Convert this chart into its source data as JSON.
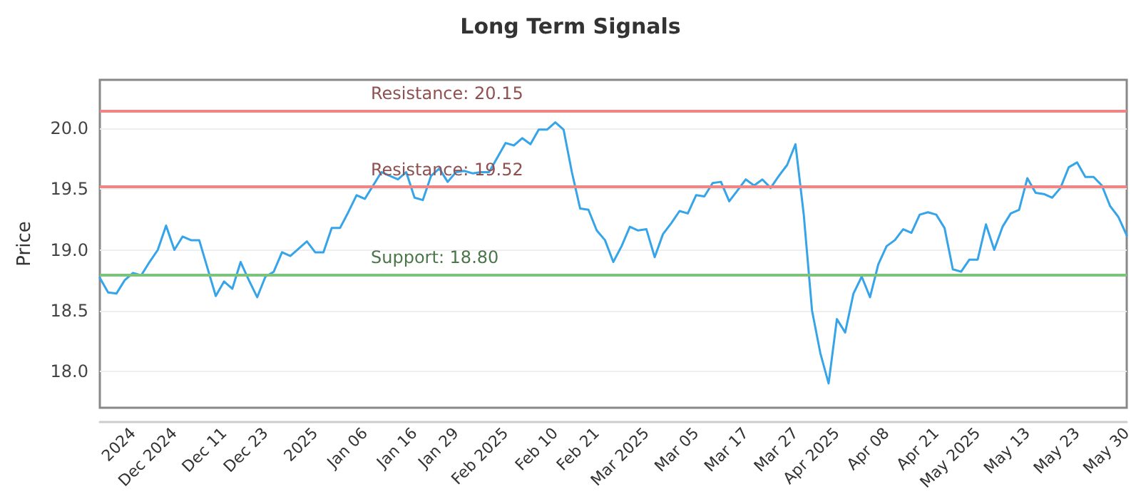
{
  "chart_data": {
    "type": "line",
    "title": "Long Term Signals",
    "ylabel": "Price",
    "categories": [
      null,
      null,
      null,
      null,
      "2024",
      null,
      null,
      null,
      null,
      "Dec 2024",
      null,
      null,
      null,
      null,
      null,
      "Dec 11",
      null,
      null,
      null,
      null,
      "Dec 23",
      null,
      null,
      null,
      null,
      null,
      "2025",
      null,
      null,
      null,
      null,
      null,
      "Jan 06",
      null,
      null,
      null,
      null,
      null,
      "Jan 16",
      null,
      null,
      null,
      null,
      "Jan 29",
      null,
      null,
      null,
      null,
      null,
      "Feb 2025",
      null,
      null,
      null,
      null,
      null,
      "Feb 10",
      null,
      null,
      null,
      null,
      "Feb 21",
      null,
      null,
      null,
      null,
      null,
      "Mar 2025",
      null,
      null,
      null,
      null,
      null,
      "Mar 05",
      null,
      null,
      null,
      null,
      null,
      "Mar 17",
      null,
      null,
      null,
      null,
      null,
      "Mar 27",
      null,
      null,
      null,
      null,
      "Apr 2025",
      null,
      null,
      null,
      null,
      null,
      "Apr 08",
      null,
      null,
      null,
      null,
      null,
      "Apr 21",
      null,
      null,
      null,
      null,
      "May 2025",
      null,
      null,
      null,
      null,
      null,
      "May 13",
      null,
      null,
      null,
      null,
      null,
      "May 23",
      null,
      null,
      null,
      null,
      null,
      "May 30"
    ],
    "series": [
      {
        "color": "#35a4e8",
        "values": [
          18.77,
          18.65,
          18.64,
          18.75,
          18.81,
          18.79,
          18.9,
          19.0,
          19.2,
          19.0,
          19.11,
          19.08,
          19.08,
          18.85,
          18.62,
          18.74,
          18.68,
          18.9,
          18.75,
          18.61,
          18.78,
          18.82,
          18.98,
          18.95,
          19.01,
          19.07,
          18.98,
          18.98,
          19.18,
          19.18,
          19.31,
          19.45,
          19.42,
          19.53,
          19.64,
          19.61,
          19.58,
          19.64,
          19.43,
          19.41,
          19.61,
          19.67,
          19.56,
          19.64,
          19.65,
          19.63,
          19.64,
          19.64,
          19.76,
          19.88,
          19.86,
          19.92,
          19.87,
          19.99,
          19.99,
          20.05,
          19.99,
          19.64,
          19.34,
          19.33,
          19.16,
          19.08,
          18.9,
          19.03,
          19.19,
          19.16,
          19.17,
          18.94,
          19.13,
          19.22,
          19.32,
          19.3,
          19.45,
          19.44,
          19.55,
          19.56,
          19.4,
          19.49,
          19.58,
          19.53,
          19.58,
          19.51,
          19.61,
          19.7,
          19.87,
          19.29,
          18.5,
          18.15,
          17.9,
          18.43,
          18.32,
          18.64,
          18.78,
          18.61,
          18.88,
          19.03,
          19.08,
          19.17,
          19.14,
          19.29,
          19.31,
          19.29,
          19.18,
          18.84,
          18.82,
          18.92,
          18.92,
          19.21,
          19.0,
          19.19,
          19.3,
          19.33,
          19.59,
          19.47,
          19.46,
          19.43,
          19.51,
          19.68,
          19.72,
          19.6,
          19.6,
          19.53,
          19.36,
          19.27,
          19.12
        ]
      }
    ],
    "ylim": [
      17.7,
      20.4
    ],
    "yticks": [
      {
        "value": 18,
        "label": "18.0"
      },
      18.5,
      {
        "value": 19,
        "label": "19.0"
      },
      19.5,
      {
        "value": 20,
        "label": "20.0"
      }
    ],
    "grid": "y",
    "marker": "none",
    "line_style": "solid",
    "ref_lines": [
      {
        "axis": "y",
        "value": 20.15,
        "label": "Resistance: 20.15",
        "color": "#f08585"
      },
      {
        "axis": "y",
        "value": 19.52,
        "label": "Resistance: 19.52",
        "color": "#f08585"
      },
      {
        "axis": "y",
        "value": 18.8,
        "label": "Support: 18.80",
        "color": "#7cc47c"
      }
    ]
  }
}
